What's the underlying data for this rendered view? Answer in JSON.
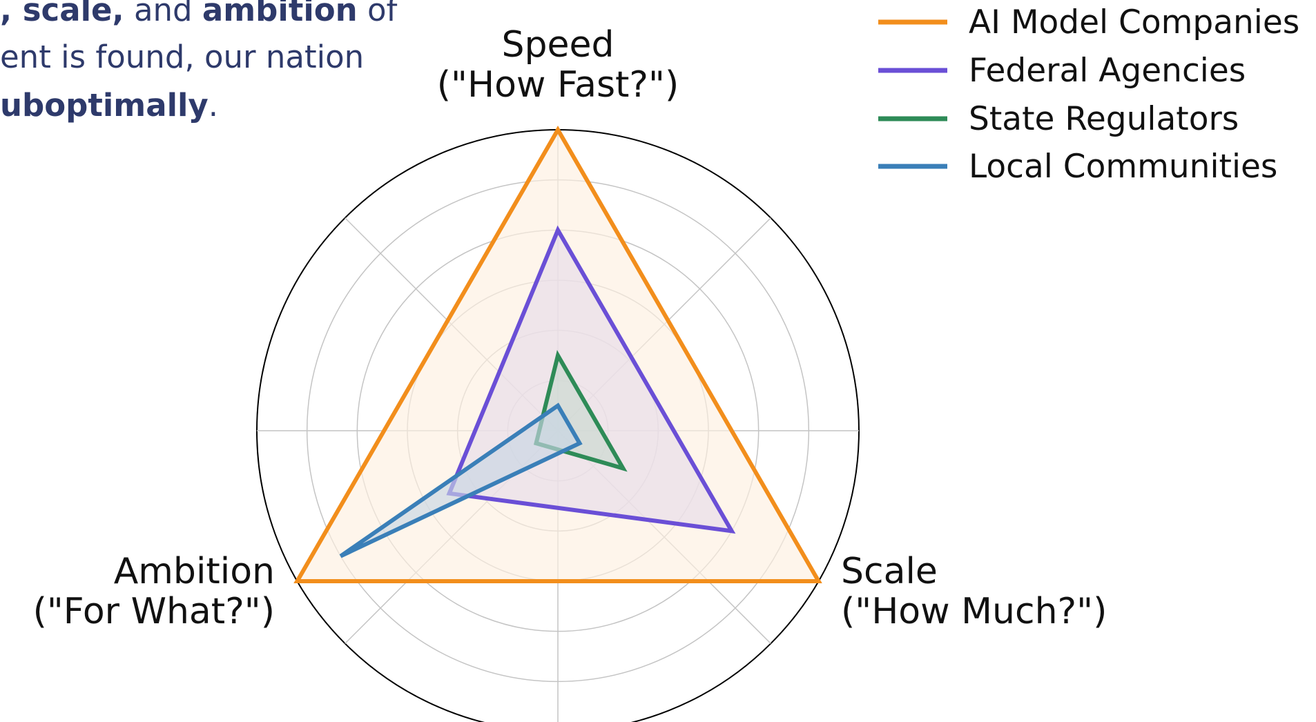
{
  "intro": {
    "line1": [
      {
        "text": ", scale,",
        "bold": true
      },
      {
        "text": " and ",
        "bold": false
      },
      {
        "text": "ambition",
        "bold": true
      },
      {
        "text": " of",
        "bold": false
      }
    ],
    "line2": [
      {
        "text": "ent is found, our nation",
        "bold": false
      }
    ],
    "line3": [
      {
        "text": "uboptimally",
        "bold": true
      },
      {
        "text": ".",
        "bold": false
      }
    ]
  },
  "chart_data": {
    "type": "radar",
    "axes": [
      {
        "name": "Speed",
        "question": "(\"How Fast?\")"
      },
      {
        "name": "Scale",
        "question": "(\"How Much?\")"
      },
      {
        "name": "Ambition",
        "question": "(\"For What?\")"
      }
    ],
    "rlim": [
      0,
      6
    ],
    "rings": [
      1,
      2,
      3,
      4,
      5,
      6
    ],
    "grid": true,
    "legend_position": "top-right",
    "series": [
      {
        "name": "AI Model Companies",
        "values": [
          6,
          6,
          6
        ],
        "color": "#f28e1c",
        "fill": "#fdf0e0"
      },
      {
        "name": "Federal Agencies",
        "values": [
          4,
          4,
          2.5
        ],
        "color": "#6a4fd6",
        "fill": "#e6dcea"
      },
      {
        "name": "State Regulators",
        "values": [
          1.5,
          1.5,
          0.5
        ],
        "color": "#2e8b57",
        "fill": "#c9d9cf"
      },
      {
        "name": "Local Communities",
        "values": [
          0.5,
          0.5,
          5
        ],
        "color": "#3a7fb8",
        "fill": "#c7d6e4"
      }
    ]
  }
}
